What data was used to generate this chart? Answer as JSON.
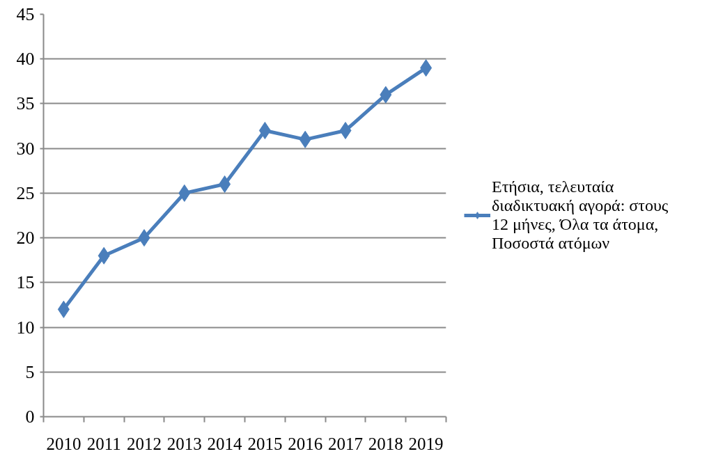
{
  "chart_data": {
    "type": "line",
    "categories": [
      "2010",
      "2011",
      "2012",
      "2013",
      "2014",
      "2015",
      "2016",
      "2017",
      "2018",
      "2019"
    ],
    "series": [
      {
        "name": "Ετήσια, τελευταία διαδικτυακή αγορά: στους 12 μήνες, Όλα τα άτομα, Ποσοστά ατόμων",
        "color": "#4a7ebb",
        "values": [
          12,
          18,
          20,
          25,
          26,
          32,
          31,
          32,
          36,
          39
        ]
      }
    ],
    "ylim": [
      0,
      45
    ],
    "yticks": [
      0,
      5,
      10,
      15,
      20,
      25,
      30,
      35,
      40,
      45
    ],
    "grid": "y",
    "legend": "right",
    "marker": "diamond",
    "line_style": "solid"
  }
}
